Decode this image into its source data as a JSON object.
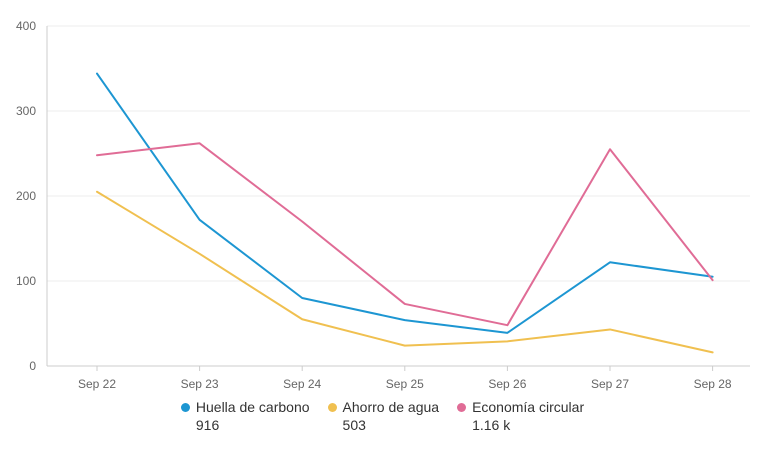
{
  "chart_data": {
    "type": "line",
    "categories": [
      "Sep 22",
      "Sep 23",
      "Sep 24",
      "Sep 25",
      "Sep 26",
      "Sep 27",
      "Sep 28"
    ],
    "ylim": [
      0,
      400
    ],
    "yticks": [
      0,
      100,
      200,
      300,
      400
    ],
    "grid": true,
    "legend_placement": "bottom",
    "series": [
      {
        "name": "Huella de carbono",
        "total": "916",
        "color": "#1d96d2",
        "values": [
          344,
          172,
          80,
          54,
          39,
          122,
          105
        ]
      },
      {
        "name": "Ahorro de agua",
        "total": "503",
        "color": "#f0c050",
        "values": [
          205,
          132,
          55,
          24,
          29,
          43,
          16
        ]
      },
      {
        "name": "Economía circular",
        "total": "1.16 k",
        "color": "#e06c96",
        "values": [
          248,
          262,
          170,
          73,
          48,
          255,
          101
        ]
      }
    ]
  }
}
